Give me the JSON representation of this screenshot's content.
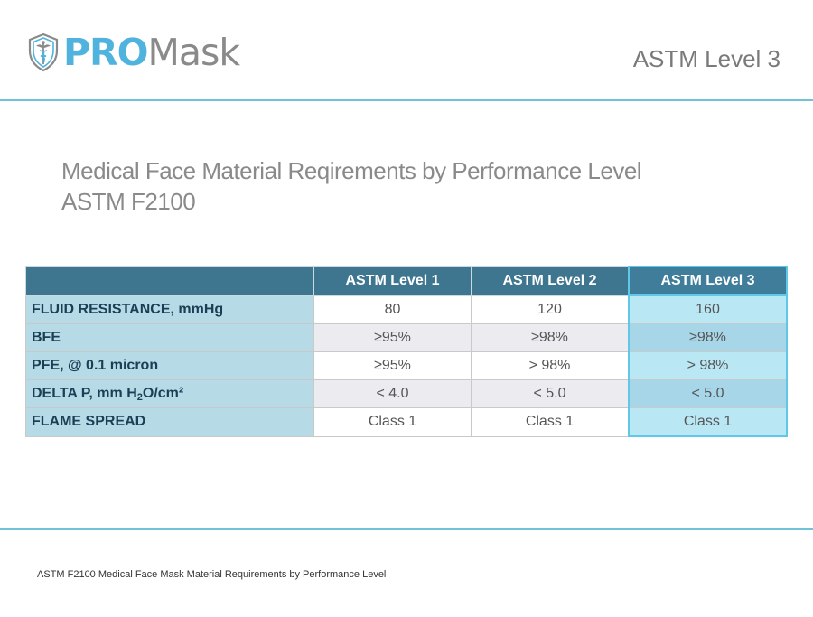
{
  "header": {
    "logo_pro": "PRO",
    "logo_mask": "Mask",
    "level_label": "ASTM Level 3"
  },
  "title": {
    "line1": "Medical Face Material Reqirements by Performance Level",
    "line2": "ASTM F2100"
  },
  "table": {
    "columns": [
      "ASTM Level 1",
      "ASTM Level 2",
      "ASTM Level 3"
    ],
    "highlight_column": "ASTM Level 3",
    "rows": [
      {
        "label": "FLUID RESISTANCE, mmHg",
        "values": [
          "80",
          "120",
          "160"
        ]
      },
      {
        "label": "BFE",
        "values": [
          "≥95%",
          "≥98%",
          "≥98%"
        ]
      },
      {
        "label": "PFE, @ 0.1 micron",
        "values": [
          "≥95%",
          "> 98%",
          "> 98%"
        ]
      },
      {
        "label_pre": "DELTA P, mm H",
        "label_sub": "2",
        "label_post": "O/cm²",
        "values": [
          "< 4.0",
          "< 5.0",
          "< 5.0"
        ]
      },
      {
        "label": "FLAME SPREAD",
        "values": [
          "Class 1",
          "Class 1",
          "Class 1"
        ]
      }
    ]
  },
  "footer": {
    "note": "ASTM F2100 Medical Face Mask Material Requirements by Performance Level"
  },
  "colors": {
    "brand_blue": "#4fb3dd",
    "rule": "#6fc2d8",
    "table_header": "#3e7690",
    "row_label_bg": "#b7dbe6",
    "highlight_bg": "#b9e7f4"
  }
}
